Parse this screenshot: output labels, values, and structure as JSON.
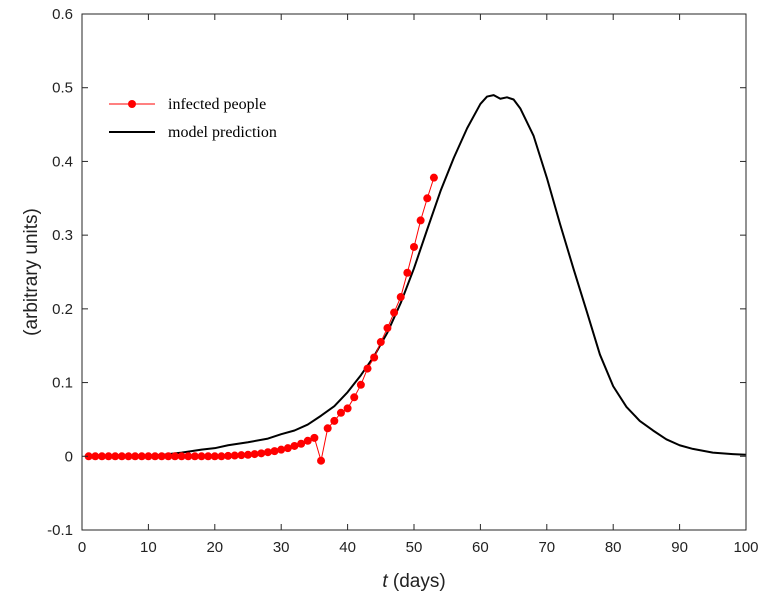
{
  "chart_data": {
    "type": "line",
    "xlabel_var": "t",
    "xlabel_rest": " (days)",
    "ylabel": "(arbitrary units)",
    "xlim": [
      0,
      100
    ],
    "ylim": [
      -0.1,
      0.6
    ],
    "x_ticks": [
      0,
      10,
      20,
      30,
      40,
      50,
      60,
      70,
      80,
      90,
      100
    ],
    "y_ticks": [
      -0.1,
      0,
      0.1,
      0.2,
      0.3,
      0.4,
      0.5,
      0.6
    ],
    "grid": false,
    "legend_position": "top-left",
    "series": [
      {
        "name": "infected people",
        "color": "#ff0000",
        "marker": "circle",
        "x": [
          1,
          2,
          3,
          4,
          5,
          6,
          7,
          8,
          9,
          10,
          11,
          12,
          13,
          14,
          15,
          16,
          17,
          18,
          19,
          20,
          21,
          22,
          23,
          24,
          25,
          26,
          27,
          28,
          29,
          30,
          31,
          32,
          33,
          34,
          35,
          36,
          37,
          38,
          39,
          40,
          41,
          42,
          43,
          44,
          45,
          46,
          47,
          48,
          49,
          50,
          51,
          52,
          53
        ],
        "y": [
          0,
          0,
          0,
          0,
          0,
          0,
          0,
          0,
          0,
          0,
          0,
          0,
          0,
          0,
          0,
          0,
          0,
          0,
          0,
          0,
          0,
          0.0005,
          0.001,
          0.0015,
          0.002,
          0.003,
          0.004,
          0.0055,
          0.007,
          0.009,
          0.011,
          0.014,
          0.017,
          0.021,
          0.025,
          -0.006,
          0.038,
          0.048,
          0.059,
          0.065,
          0.08,
          0.097,
          0.119,
          0.134,
          0.155,
          0.174,
          0.195,
          0.216,
          0.249,
          0.284,
          0.32,
          0.35,
          0.378
        ]
      },
      {
        "name": "model prediction",
        "color": "#000000",
        "marker": "none",
        "x": [
          1,
          5,
          10,
          12,
          15,
          18,
          20,
          22,
          25,
          28,
          30,
          32,
          34,
          36,
          38,
          40,
          42,
          44,
          46,
          48,
          50,
          52,
          54,
          56,
          58,
          60,
          61,
          62,
          63,
          64,
          65,
          66,
          68,
          70,
          72,
          74,
          76,
          78,
          80,
          82,
          84,
          86,
          88,
          90,
          92,
          95,
          98,
          100
        ],
        "y": [
          0,
          0,
          0.001,
          0.002,
          0.005,
          0.009,
          0.011,
          0.015,
          0.019,
          0.024,
          0.03,
          0.035,
          0.043,
          0.055,
          0.068,
          0.087,
          0.11,
          0.136,
          0.168,
          0.208,
          0.255,
          0.308,
          0.36,
          0.405,
          0.445,
          0.478,
          0.488,
          0.49,
          0.485,
          0.487,
          0.484,
          0.472,
          0.435,
          0.378,
          0.315,
          0.255,
          0.197,
          0.138,
          0.095,
          0.067,
          0.048,
          0.035,
          0.023,
          0.015,
          0.01,
          0.005,
          0.003,
          0.002
        ]
      }
    ]
  }
}
